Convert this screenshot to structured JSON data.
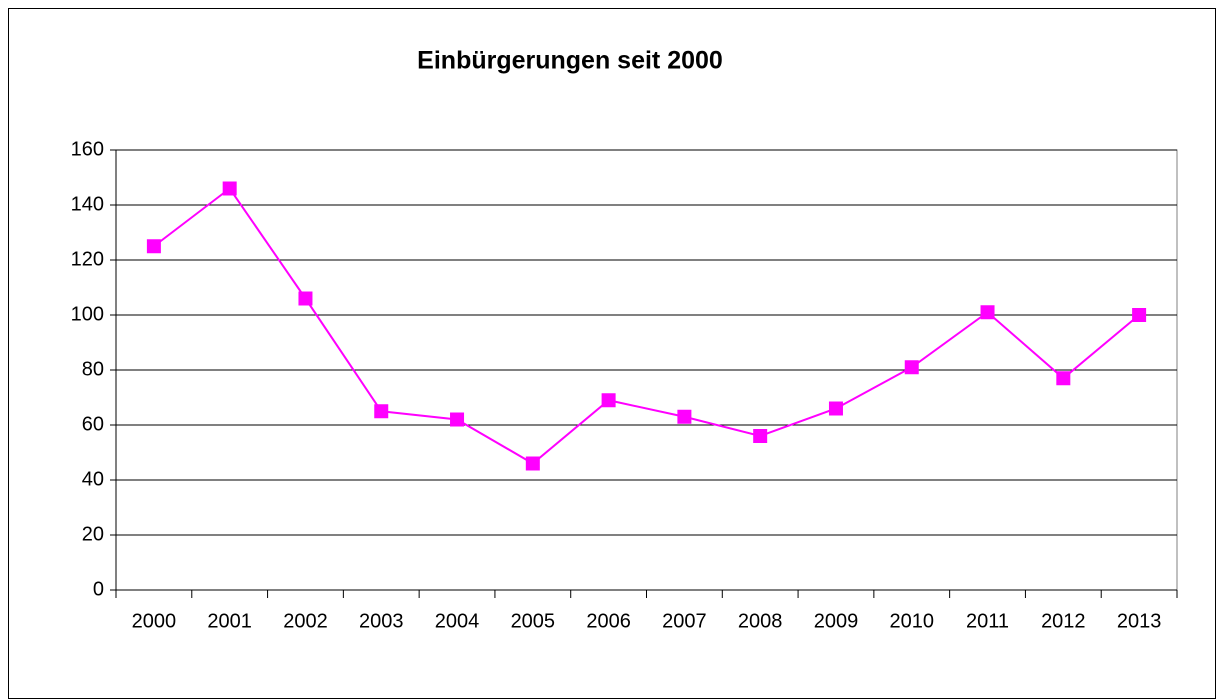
{
  "chart_data": {
    "type": "line",
    "title": "Einbürgerungen seit 2000",
    "categories": [
      "2000",
      "2001",
      "2002",
      "2003",
      "2004",
      "2005",
      "2006",
      "2007",
      "2008",
      "2009",
      "2010",
      "2011",
      "2012",
      "2013"
    ],
    "values": [
      125,
      146,
      106,
      65,
      62,
      46,
      69,
      63,
      56,
      66,
      81,
      101,
      77,
      100
    ],
    "color": "#ff00ff",
    "ylim": [
      0,
      160
    ],
    "yticks": [
      0,
      20,
      40,
      60,
      80,
      100,
      120,
      140,
      160
    ],
    "grid": true
  }
}
